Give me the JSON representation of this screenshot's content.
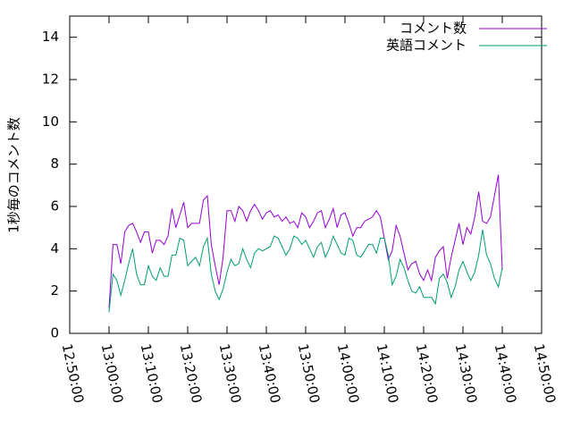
{
  "chart_data": {
    "type": "line",
    "y_label": "1秒毎のコメント数",
    "x": [
      "13:00:00",
      "13:01:00",
      "13:02:00",
      "13:03:00",
      "13:04:00",
      "13:05:00",
      "13:06:00",
      "13:07:00",
      "13:08:00",
      "13:09:00",
      "13:10:00",
      "13:11:00",
      "13:12:00",
      "13:13:00",
      "13:14:00",
      "13:15:00",
      "13:16:00",
      "13:17:00",
      "13:18:00",
      "13:19:00",
      "13:20:00",
      "13:21:00",
      "13:22:00",
      "13:23:00",
      "13:24:00",
      "13:25:00",
      "13:26:00",
      "13:27:00",
      "13:28:00",
      "13:29:00",
      "13:30:00",
      "13:31:00",
      "13:32:00",
      "13:33:00",
      "13:34:00",
      "13:35:00",
      "13:36:00",
      "13:37:00",
      "13:38:00",
      "13:39:00",
      "13:40:00",
      "13:41:00",
      "13:42:00",
      "13:43:00",
      "13:44:00",
      "13:45:00",
      "13:46:00",
      "13:47:00",
      "13:48:00",
      "13:49:00",
      "13:50:00",
      "13:51:00",
      "13:52:00",
      "13:53:00",
      "13:54:00",
      "13:55:00",
      "13:56:00",
      "13:57:00",
      "13:58:00",
      "13:59:00",
      "14:00:00",
      "14:01:00",
      "14:02:00",
      "14:03:00",
      "14:04:00",
      "14:05:00",
      "14:06:00",
      "14:07:00",
      "14:08:00",
      "14:09:00",
      "14:10:00",
      "14:11:00",
      "14:12:00",
      "14:13:00",
      "14:14:00",
      "14:15:00",
      "14:16:00",
      "14:17:00",
      "14:18:00",
      "14:19:00",
      "14:20:00",
      "14:21:00",
      "14:22:00",
      "14:23:00",
      "14:24:00",
      "14:25:00",
      "14:26:00",
      "14:27:00",
      "14:28:00",
      "14:29:00",
      "14:30:00",
      "14:31:00",
      "14:32:00",
      "14:33:00",
      "14:34:00",
      "14:35:00",
      "14:36:00",
      "14:37:00",
      "14:38:00",
      "14:39:00",
      "14:40:00"
    ],
    "series": [
      {
        "name": "コメント数",
        "color": "#9400d3",
        "values": [
          1.2,
          4.2,
          4.2,
          3.3,
          4.8,
          5.1,
          5.2,
          4.8,
          4.3,
          4.8,
          4.8,
          3.8,
          4.4,
          4.4,
          4.2,
          4.6,
          5.9,
          5.0,
          5.6,
          6.2,
          5.0,
          5.2,
          5.2,
          5.2,
          6.3,
          6.5,
          4.2,
          3.2,
          2.3,
          3.6,
          5.8,
          5.8,
          5.3,
          6.0,
          5.8,
          5.3,
          5.8,
          6.1,
          5.8,
          5.4,
          5.7,
          5.8,
          5.5,
          5.6,
          5.3,
          5.5,
          5.2,
          5.3,
          5.0,
          5.7,
          5.5,
          5.0,
          5.3,
          5.7,
          5.8,
          5.0,
          5.4,
          5.9,
          5.0,
          5.6,
          5.7,
          5.2,
          4.6,
          5.0,
          5.0,
          5.3,
          5.4,
          5.5,
          5.8,
          5.5,
          4.5,
          3.5,
          3.9,
          5.1,
          4.6,
          3.8,
          3.0,
          3.3,
          3.4,
          2.8,
          2.5,
          3.0,
          2.5,
          3.6,
          3.9,
          4.1,
          2.6,
          3.6,
          4.4,
          5.2,
          4.2,
          5.0,
          4.7,
          5.5,
          6.7,
          5.3,
          5.2,
          5.5,
          6.5,
          7.5,
          3.0
        ]
      },
      {
        "name": "英語コメント",
        "color": "#009e73",
        "values": [
          1.0,
          2.8,
          2.5,
          1.8,
          2.5,
          3.3,
          4.0,
          2.8,
          2.3,
          2.3,
          3.2,
          2.7,
          2.5,
          3.1,
          2.7,
          2.7,
          3.7,
          3.7,
          4.5,
          4.4,
          3.2,
          3.4,
          3.6,
          3.2,
          4.1,
          4.5,
          2.8,
          2.0,
          1.6,
          2.1,
          2.9,
          3.5,
          3.2,
          3.3,
          4.0,
          3.5,
          3.1,
          3.8,
          4.0,
          3.9,
          4.0,
          4.1,
          4.6,
          4.5,
          4.1,
          3.7,
          4.0,
          4.6,
          4.5,
          4.2,
          4.4,
          4.0,
          3.6,
          4.1,
          4.3,
          3.6,
          4.0,
          4.6,
          4.2,
          3.8,
          3.7,
          4.5,
          4.4,
          3.7,
          3.6,
          3.9,
          4.2,
          4.2,
          3.8,
          4.5,
          4.5,
          3.7,
          2.3,
          2.7,
          3.5,
          3.1,
          2.5,
          2.0,
          1.9,
          2.2,
          1.7,
          1.7,
          1.7,
          1.4,
          2.6,
          2.8,
          2.4,
          1.7,
          2.2,
          3.0,
          3.4,
          2.9,
          2.5,
          2.9,
          3.7,
          4.9,
          3.7,
          3.3,
          2.6,
          2.2,
          3.1
        ]
      }
    ],
    "xlim": [
      "12:50:00",
      "14:50:00"
    ],
    "xticks": [
      "12:50:00",
      "13:00:00",
      "13:10:00",
      "13:20:00",
      "13:30:00",
      "13:40:00",
      "13:50:00",
      "14:00:00",
      "14:10:00",
      "14:20:00",
      "14:30:00",
      "14:40:00",
      "14:50:00"
    ],
    "ylim": [
      0,
      15
    ],
    "yticks": [
      0,
      2,
      4,
      6,
      8,
      10,
      12,
      14
    ],
    "legend": "top-right"
  }
}
